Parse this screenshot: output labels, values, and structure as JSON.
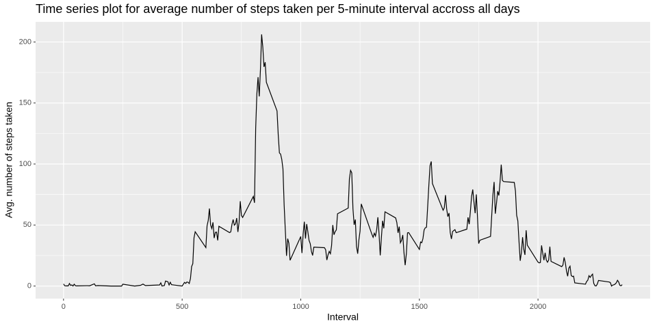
{
  "chart_data": {
    "type": "line",
    "title": "Time series plot for average number of steps taken per 5-minute interval accross all days",
    "x_label": "Interval",
    "y_label": "Avg. number of steps taken",
    "x": [
      0,
      5,
      10,
      15,
      20,
      25,
      30,
      35,
      40,
      45,
      50,
      55,
      100,
      110,
      130,
      135,
      145,
      200,
      240,
      245,
      250,
      300,
      325,
      335,
      345,
      405,
      410,
      415,
      425,
      430,
      440,
      445,
      450,
      455,
      500,
      510,
      515,
      520,
      525,
      530,
      535,
      540,
      545,
      550,
      555,
      600,
      605,
      610,
      615,
      620,
      625,
      630,
      635,
      640,
      645,
      650,
      655,
      700,
      705,
      710,
      715,
      720,
      725,
      730,
      735,
      740,
      745,
      750,
      755,
      800,
      805,
      810,
      815,
      820,
      825,
      830,
      835,
      840,
      845,
      850,
      855,
      900,
      905,
      910,
      915,
      920,
      925,
      930,
      935,
      940,
      945,
      950,
      955,
      1000,
      1005,
      1010,
      1015,
      1020,
      1025,
      1030,
      1035,
      1040,
      1045,
      1050,
      1055,
      1100,
      1105,
      1110,
      1115,
      1120,
      1125,
      1130,
      1135,
      1140,
      1145,
      1150,
      1155,
      1200,
      1205,
      1210,
      1215,
      1220,
      1225,
      1230,
      1235,
      1240,
      1245,
      1250,
      1255,
      1300,
      1305,
      1310,
      1315,
      1320,
      1325,
      1330,
      1335,
      1340,
      1345,
      1350,
      1355,
      1400,
      1405,
      1410,
      1415,
      1420,
      1425,
      1430,
      1435,
      1440,
      1445,
      1450,
      1455,
      1500,
      1505,
      1510,
      1515,
      1520,
      1525,
      1530,
      1535,
      1540,
      1545,
      1550,
      1555,
      1600,
      1605,
      1610,
      1615,
      1620,
      1625,
      1630,
      1635,
      1640,
      1645,
      1650,
      1655,
      1700,
      1705,
      1710,
      1715,
      1720,
      1725,
      1730,
      1735,
      1740,
      1745,
      1750,
      1755,
      1800,
      1805,
      1810,
      1815,
      1820,
      1825,
      1830,
      1835,
      1840,
      1845,
      1850,
      1855,
      1900,
      1905,
      1910,
      1915,
      1920,
      1925,
      1930,
      1935,
      1940,
      1945,
      1950,
      1955,
      2000,
      2005,
      2010,
      2015,
      2020,
      2025,
      2030,
      2035,
      2040,
      2045,
      2050,
      2055,
      2100,
      2105,
      2110,
      2115,
      2120,
      2125,
      2130,
      2135,
      2140,
      2145,
      2150,
      2155,
      2200,
      2205,
      2210,
      2215,
      2220,
      2225,
      2230,
      2235,
      2240,
      2245,
      2250,
      2255,
      2300,
      2305,
      2310,
      2315,
      2320,
      2325,
      2330,
      2335,
      2340,
      2345,
      2350,
      2355
    ],
    "values": [
      1.7,
      0.3,
      0.1,
      0.2,
      0.1,
      2.1,
      0.5,
      0.9,
      0,
      1.5,
      0.3,
      0.1,
      0.3,
      0.2,
      1.8,
      0.2,
      0.4,
      0,
      0,
      0,
      1.5,
      0,
      0.6,
      1.6,
      0.4,
      0.9,
      2.6,
      0,
      0.4,
      4.1,
      3.5,
      0.8,
      3.1,
      1.1,
      0,
      3,
      2.2,
      3.3,
      3,
      2.1,
      6.1,
      16,
      18.3,
      39.5,
      44.5,
      31.5,
      49.3,
      53.8,
      63.5,
      50,
      47.1,
      52.2,
      39.3,
      44,
      44.2,
      37.4,
      49,
      43.8,
      44.4,
      50.5,
      54.5,
      49.9,
      50.9,
      55.7,
      44.3,
      52.3,
      69.5,
      57.8,
      56.2,
      73.4,
      68.2,
      129.4,
      157.5,
      171.2,
      155.4,
      177.3,
      206.2,
      195.9,
      179.6,
      183.4,
      167,
      143.5,
      124,
      109.1,
      108.1,
      103.7,
      95.9,
      66.2,
      45.2,
      24.8,
      38.8,
      35,
      21.1,
      40.6,
      27,
      42.4,
      52.7,
      38.9,
      50.8,
      44.3,
      37.4,
      34.7,
      28.3,
      25.1,
      31.9,
      31.4,
      29.7,
      21.3,
      25.5,
      28.4,
      26.5,
      33.3,
      50,
      42,
      44.6,
      46,
      59.2,
      63.9,
      87.7,
      94.8,
      92.8,
      63.4,
      50.2,
      54.5,
      32.4,
      26.5,
      37.7,
      45.1,
      67.3,
      42.3,
      39.9,
      43.3,
      41,
      46.2,
      56.4,
      42.8,
      25.1,
      40,
      53.5,
      47.3,
      60.8,
      55.8,
      52,
      43.6,
      48.7,
      35.5,
      37.5,
      41.8,
      27.5,
      17.1,
      26.1,
      43.6,
      43.8,
      30,
      36.1,
      35.5,
      38.8,
      46,
      47.8,
      48.1,
      65.3,
      82.9,
      98.7,
      102.1,
      84,
      62.1,
      64.1,
      74.5,
      63.2,
      56.9,
      59.8,
      43.9,
      38.6,
      44.7,
      45.5,
      46.2,
      43.7,
      46.6,
      56.3,
      50.7,
      61.2,
      73.4,
      79.1,
      68.9,
      59.7,
      75.1,
      56.5,
      34.8,
      37.5,
      40.7,
      58,
      74.7,
      85.3,
      59.3,
      67.8,
      77.7,
      74.2,
      85.3,
      99.5,
      86.6,
      85.6,
      84.9,
      77.8,
      58,
      53.4,
      36.3,
      20.7,
      27.4,
      40,
      30.2,
      25.5,
      45.7,
      33.5,
      19.6,
      19,
      19.3,
      33.3,
      26.8,
      21.2,
      27.3,
      21.3,
      19.5,
      21.3,
      32.3,
      20.2,
      15.9,
      17.2,
      23.5,
      19.2,
      12.5,
      8,
      14.7,
      16.3,
      8.7,
      7.8,
      8.1,
      2.6,
      1.5,
      3.7,
      4.8,
      8.5,
      7.1,
      8.7,
      9.8,
      2.2,
      0.3,
      0.1,
      1.6,
      4.6,
      3.3,
      2.8,
      0,
      0.8,
      1,
      1.6,
      2.6,
      4.7,
      3.3,
      0.6,
      0.2,
      1.1
    ],
    "color": "#000000",
    "xlim": [
      -117.75,
      2472.75
    ],
    "xticks": [
      0,
      500,
      1000,
      1500,
      2000
    ],
    "ylim": [
      -10.31,
      216.48
    ],
    "yticks": [
      0,
      50,
      100,
      150,
      200
    ],
    "grid": true
  }
}
